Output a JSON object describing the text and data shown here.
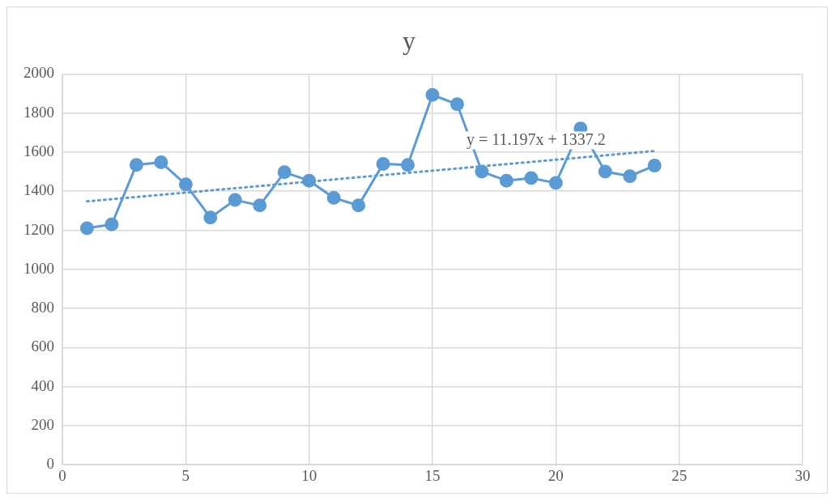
{
  "chart_data": {
    "type": "line",
    "title": "y",
    "x": [
      1,
      2,
      3,
      4,
      5,
      6,
      7,
      8,
      9,
      10,
      11,
      12,
      13,
      14,
      15,
      16,
      17,
      18,
      19,
      20,
      21,
      22,
      23,
      24
    ],
    "series": [
      {
        "color": "#5b9bd5",
        "marker": "circle",
        "line_style": "solid",
        "values": [
          1210,
          1230,
          1535,
          1548,
          1435,
          1265,
          1355,
          1327,
          1497,
          1454,
          1366,
          1327,
          1540,
          1535,
          1893,
          1845,
          1500,
          1454,
          1467,
          1442,
          1721,
          1500,
          1477,
          1531
        ]
      },
      {
        "type": "line",
        "color": "#5b9bd5",
        "marker": "none",
        "line_style": "dotted",
        "x": [
          1,
          24
        ],
        "values": [
          1348,
          1606
        ]
      }
    ],
    "xlim": [
      0,
      30
    ],
    "xticks": [
      0,
      5,
      10,
      15,
      20,
      25,
      30
    ],
    "ylim": [
      0,
      2000
    ],
    "yticks": [
      0,
      200,
      400,
      600,
      800,
      1000,
      1200,
      1400,
      1600,
      1800,
      2000
    ],
    "grid": true,
    "legend": false,
    "annotations": [
      "y = 11.197x + 1337.2"
    ]
  }
}
